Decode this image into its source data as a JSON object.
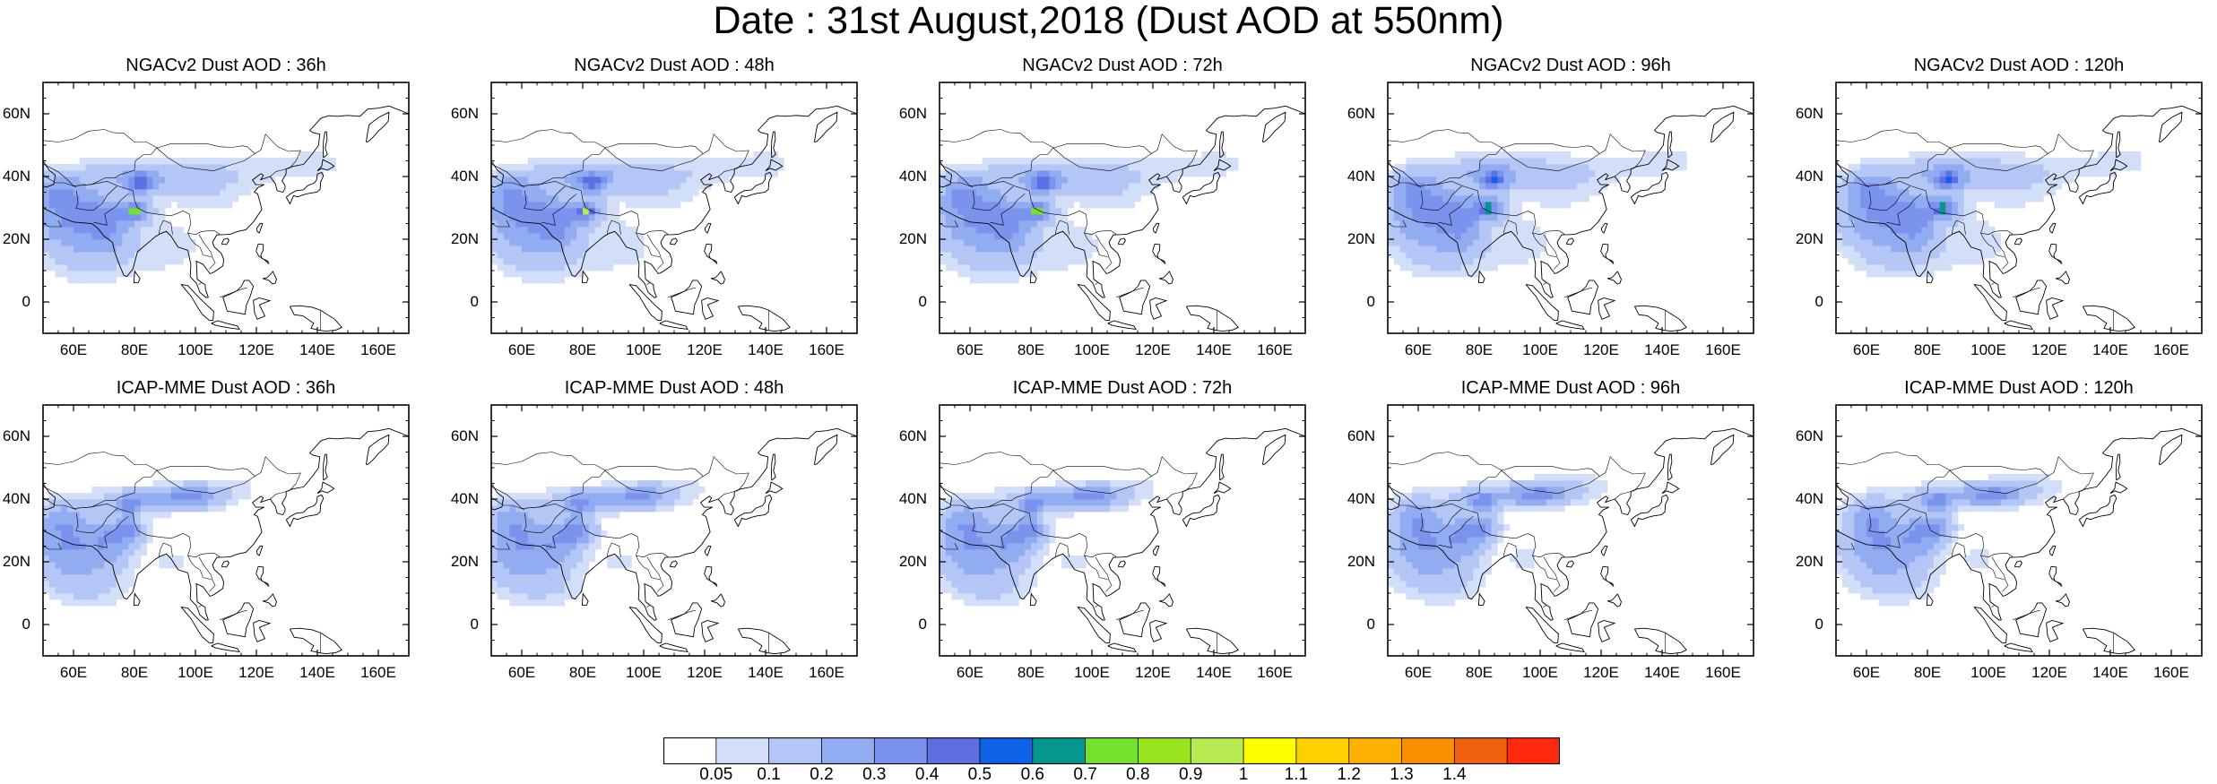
{
  "title": "Date : 31st August,2018 (Dust AOD at 550nm)",
  "map": {
    "lon_range": [
      50,
      170
    ],
    "lat_range": [
      -10,
      70
    ],
    "lon_ticks": [
      {
        "value": 60,
        "label": "60E"
      },
      {
        "value": 80,
        "label": "80E"
      },
      {
        "value": 100,
        "label": "100E"
      },
      {
        "value": 120,
        "label": "120E"
      },
      {
        "value": 140,
        "label": "140E"
      },
      {
        "value": 160,
        "label": "160E"
      }
    ],
    "lat_ticks": [
      {
        "value": 60,
        "label": "60N"
      },
      {
        "value": 40,
        "label": "40N"
      },
      {
        "value": 20,
        "label": "20N"
      },
      {
        "value": 0,
        "label": "0"
      }
    ]
  },
  "panels": [
    {
      "title": "NGACv2 Dust AOD : 36h"
    },
    {
      "title": "NGACv2 Dust AOD : 48h"
    },
    {
      "title": "NGACv2 Dust AOD : 72h"
    },
    {
      "title": "NGACv2 Dust AOD : 96h"
    },
    {
      "title": "NGACv2 Dust AOD : 120h"
    },
    {
      "title": "ICAP-MME Dust AOD : 36h"
    },
    {
      "title": "ICAP-MME Dust AOD : 48h"
    },
    {
      "title": "ICAP-MME Dust AOD : 72h"
    },
    {
      "title": "ICAP-MME Dust AOD : 96h"
    },
    {
      "title": "ICAP-MME Dust AOD : 120h"
    }
  ],
  "colorbar": {
    "colors": [
      "#ffffff",
      "#d3def9",
      "#b3c6f5",
      "#92acf2",
      "#7b93ed",
      "#5d6fe3",
      "#0f61e8",
      "#05968f",
      "#72e22a",
      "#98e51f",
      "#b8eb51",
      "#ffff00",
      "#fdd000",
      "#fcb000",
      "#f88e00",
      "#f1620f",
      "#ff2a10"
    ],
    "labels": [
      "0.05",
      "0.1",
      "0.2",
      "0.3",
      "0.4",
      "0.5",
      "0.6",
      "0.7",
      "0.8",
      "0.9",
      "1",
      "1.1",
      "1.2",
      "1.3",
      "1.4"
    ]
  }
}
